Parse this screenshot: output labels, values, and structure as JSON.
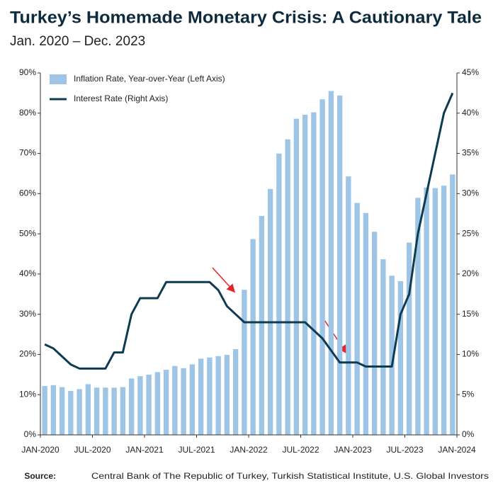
{
  "chart_data": {
    "type": "bar-line",
    "title": "Turkey’s Homemade Monetary Crisis: A Cautionary Tale",
    "subtitle": "Jan. 2020 – Dec. 2023",
    "source_label": "Source:",
    "source": "Central Bank of The Republic of Turkey, Turkish Statistical Institute, U.S. Global Investors",
    "xlim": [
      0,
      48
    ],
    "xticks": [
      {
        "value": 0,
        "label": "JAN-2020"
      },
      {
        "value": 6,
        "label": "JUL-2020"
      },
      {
        "value": 12,
        "label": "JAN-2021"
      },
      {
        "value": 18,
        "label": "JUL-2021"
      },
      {
        "value": 24,
        "label": "JAN-2022"
      },
      {
        "value": 30,
        "label": "JUL-2022"
      },
      {
        "value": 36,
        "label": "JAN-2023"
      },
      {
        "value": 42,
        "label": "JUL-2023"
      },
      {
        "value": 48,
        "label": "JAN-2024"
      }
    ],
    "ylim": [
      0,
      90
    ],
    "yticks": [
      {
        "value": 0,
        "label": "0%"
      },
      {
        "value": 10,
        "label": "10%"
      },
      {
        "value": 20,
        "label": "20%"
      },
      {
        "value": 30,
        "label": "30%"
      },
      {
        "value": 40,
        "label": "40%"
      },
      {
        "value": 50,
        "label": "50%"
      },
      {
        "value": 60,
        "label": "60%"
      },
      {
        "value": 70,
        "label": "70%"
      },
      {
        "value": 80,
        "label": "80%"
      },
      {
        "value": 90,
        "label": "90%"
      }
    ],
    "y2lim": [
      0,
      45
    ],
    "y2ticks": [
      {
        "value": 0,
        "label": "0%"
      },
      {
        "value": 5,
        "label": "5%"
      },
      {
        "value": 10,
        "label": "10%"
      },
      {
        "value": 15,
        "label": "15%"
      },
      {
        "value": 20,
        "label": "20%"
      },
      {
        "value": 25,
        "label": "25%"
      },
      {
        "value": 30,
        "label": "30%"
      },
      {
        "value": 35,
        "label": "35%"
      },
      {
        "value": 40,
        "label": "40%"
      },
      {
        "value": 45,
        "label": "45%"
      }
    ],
    "grid": false,
    "legend": "upper left",
    "series": [
      {
        "name": "Inflation Rate, Year-over-Year (Left Axis)",
        "kind": "bar",
        "color": "#9fc5e6",
        "values": [
          12.15,
          12.37,
          11.86,
          10.94,
          11.39,
          12.62,
          11.76,
          11.77,
          11.75,
          11.89,
          14.03,
          14.6,
          14.97,
          15.61,
          16.19,
          17.14,
          16.59,
          17.53,
          18.95,
          19.25,
          19.58,
          19.89,
          21.31,
          36.08,
          48.69,
          54.44,
          61.14,
          69.97,
          73.5,
          78.62,
          79.6,
          80.21,
          83.45,
          85.51,
          84.39,
          64.27,
          57.68,
          55.18,
          50.51,
          43.68,
          39.59,
          38.21,
          47.83,
          58.94,
          61.53,
          61.36,
          61.98,
          64.77
        ]
      },
      {
        "name": "Interest Rate (Right Axis)",
        "kind": "line",
        "axis": "y2",
        "color": "#0d3c50",
        "values": [
          11.25,
          10.75,
          9.75,
          8.75,
          8.25,
          8.25,
          8.25,
          8.25,
          10.25,
          10.25,
          15,
          17,
          17,
          17,
          19,
          19,
          19,
          19,
          19,
          19,
          18,
          16,
          15,
          14,
          14,
          14,
          14,
          14,
          14,
          14,
          14,
          13,
          12,
          10.5,
          9,
          9,
          9,
          8.5,
          8.5,
          8.5,
          8.5,
          15,
          17.5,
          25,
          30,
          35,
          40,
          42.5
        ]
      }
    ]
  }
}
